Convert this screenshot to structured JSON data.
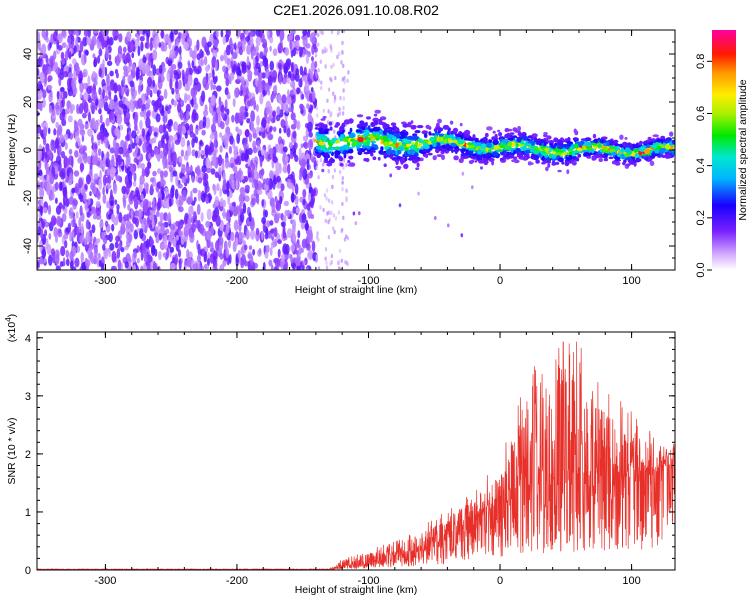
{
  "title": "C2E1.2026.091.10.08.R02",
  "chart_data": [
    {
      "type": "heatmap",
      "title": "C2E1.2026.091.10.08.R02",
      "xlabel": "Height of straight line (km)",
      "ylabel": "Frequency (Hz)",
      "xlim": [
        -352,
        133
      ],
      "ylim": [
        -50,
        50
      ],
      "x_ticks": [
        "-300",
        "-200",
        "-100",
        "0",
        "100"
      ],
      "y_ticks": [
        "-40",
        "-20",
        "0",
        "20",
        "40"
      ],
      "colorbar": {
        "label": "Normalized spectral amplitude",
        "range": [
          0,
          0.92
        ],
        "ticks": [
          "0.0",
          "0.2",
          "0.4",
          "0.6",
          "0.8"
        ],
        "colormap": "rainbow (white, violet, blue, cyan, green, yellow, orange, red, magenta)"
      },
      "regions": [
        {
          "description": "broadband noise over full frequency range",
          "x_range": [
            -352,
            -140
          ],
          "amplitude": 0.1
        },
        {
          "description": "narrow signal band near 0 Hz",
          "x_range": [
            -140,
            133
          ],
          "center_freq": [
            4,
            3,
            3,
            1,
            0,
            0
          ],
          "center_x": [
            -140,
            -80,
            -40,
            0,
            60,
            133
          ],
          "peak_amplitude": 0.9
        }
      ],
      "grid": false,
      "colors": {
        "axes": "#000000",
        "background": "#ffffff"
      }
    },
    {
      "type": "line",
      "xlabel": "Height of straight line (km)",
      "ylabel": "SNR (10 * v/v)",
      "y_multiplier": "(x10^4)",
      "xlim": [
        -352,
        133
      ],
      "ylim": [
        0,
        41000
      ],
      "x_ticks": [
        "-300",
        "-200",
        "-100",
        "0",
        "100"
      ],
      "y_ticks": [
        "0",
        "1",
        "2",
        "3",
        "4"
      ],
      "series": [
        {
          "color": "#e8302a",
          "envelope": {
            "x": [
              -352,
              -130,
              -120,
              -100,
              -80,
              -60,
              -40,
              -20,
              0,
              20,
              40,
              55,
              70,
              90,
              110,
              133
            ],
            "mean": [
              100,
              100,
              600,
              1200,
              2200,
              3500,
              5500,
              8000,
              11000,
              13000,
              14000,
              15000,
              15000,
              15500,
              16500,
              18000
            ],
            "max": [
              150,
              200,
              2000,
              3500,
              5000,
              7500,
              10500,
              14500,
              19000,
              34000,
              38000,
              41000,
              35000,
              30000,
              25000,
              22000
            ]
          }
        }
      ],
      "grid": false
    }
  ]
}
